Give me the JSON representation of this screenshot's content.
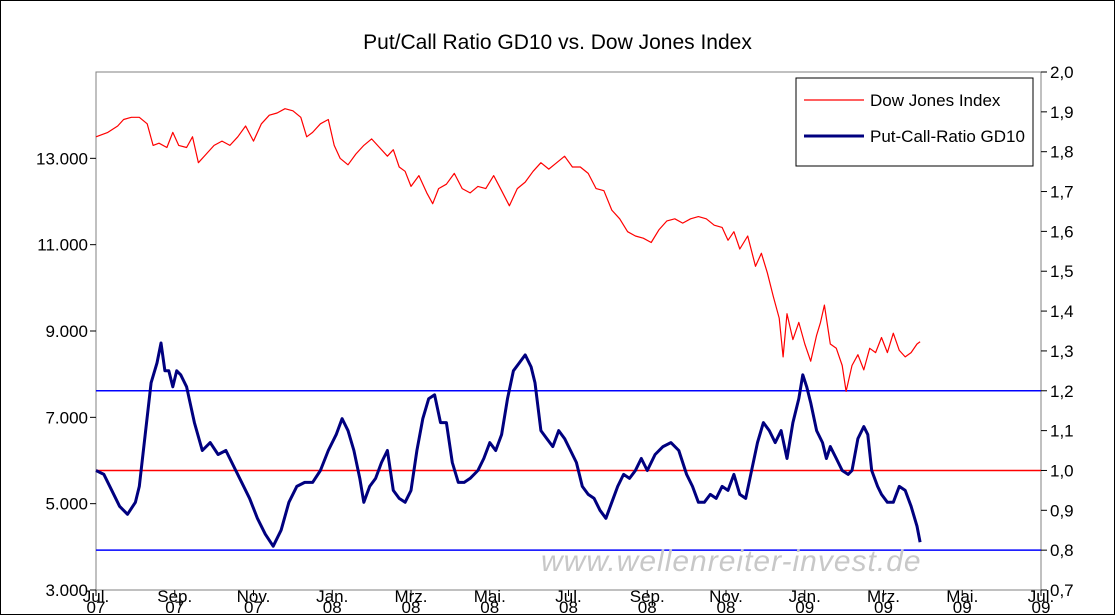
{
  "chart_data": {
    "type": "line",
    "title": "Put/Call Ratio GD10 vs. Dow Jones Index",
    "watermark": "www.wellenreiter-invest.de",
    "legend_position": "top-right",
    "grid": false,
    "x_axis": {
      "range": [
        0,
        24
      ],
      "unit": "months since Jul. 2007",
      "tick_labels": [
        [
          "Jul.",
          "07"
        ],
        [
          "Sep.",
          "07"
        ],
        [
          "Nov.",
          "07"
        ],
        [
          "Jan.",
          "08"
        ],
        [
          "Mrz.",
          "08"
        ],
        [
          "Mai.",
          "08"
        ],
        [
          "Jul.",
          "08"
        ],
        [
          "Sep.",
          "08"
        ],
        [
          "Nov.",
          "08"
        ],
        [
          "Jan.",
          "09"
        ],
        [
          "Mrz.",
          "09"
        ],
        [
          "Mai.",
          "09"
        ],
        [
          "Jul.",
          "09"
        ]
      ]
    },
    "y_left": {
      "range": [
        3000,
        15000
      ],
      "tick_labels": [
        "3.000",
        "5.000",
        "7.000",
        "9.000",
        "11.000",
        "13.000"
      ],
      "ticks": [
        3000,
        5000,
        7000,
        9000,
        11000,
        13000
      ]
    },
    "y_right": {
      "range": [
        0.7,
        2.0
      ],
      "tick_labels": [
        "0,7",
        "0,8",
        "0,9",
        "1,0",
        "1,1",
        "1,2",
        "1,3",
        "1,4",
        "1,5",
        "1,6",
        "1,7",
        "1,8",
        "1,9",
        "2,0"
      ],
      "ticks": [
        0.7,
        0.8,
        0.9,
        1.0,
        1.1,
        1.2,
        1.3,
        1.4,
        1.5,
        1.6,
        1.7,
        1.8,
        1.9,
        2.0
      ]
    },
    "reference_lines": [
      {
        "axis": "right",
        "value": 1.2,
        "color": "#0000ff"
      },
      {
        "axis": "right",
        "value": 1.0,
        "color": "#ff0000"
      },
      {
        "axis": "right",
        "value": 0.8,
        "color": "#0000ff"
      }
    ],
    "series": [
      {
        "name": "Dow Jones Index",
        "axis": "left",
        "color": "#ff0000",
        "width": 1.2,
        "points": [
          [
            0.0,
            13500
          ],
          [
            0.3,
            13600
          ],
          [
            0.55,
            13750
          ],
          [
            0.7,
            13900
          ],
          [
            0.9,
            13950
          ],
          [
            1.1,
            13950
          ],
          [
            1.3,
            13800
          ],
          [
            1.45,
            13300
          ],
          [
            1.6,
            13350
          ],
          [
            1.8,
            13250
          ],
          [
            1.95,
            13600
          ],
          [
            2.1,
            13300
          ],
          [
            2.3,
            13250
          ],
          [
            2.45,
            13500
          ],
          [
            2.6,
            12900
          ],
          [
            2.8,
            13100
          ],
          [
            3.0,
            13300
          ],
          [
            3.2,
            13400
          ],
          [
            3.4,
            13300
          ],
          [
            3.6,
            13500
          ],
          [
            3.8,
            13750
          ],
          [
            4.0,
            13400
          ],
          [
            4.2,
            13800
          ],
          [
            4.4,
            14000
          ],
          [
            4.6,
            14050
          ],
          [
            4.8,
            14150
          ],
          [
            5.0,
            14100
          ],
          [
            5.2,
            13950
          ],
          [
            5.35,
            13500
          ],
          [
            5.5,
            13600
          ],
          [
            5.7,
            13800
          ],
          [
            5.9,
            13900
          ],
          [
            6.05,
            13300
          ],
          [
            6.2,
            13000
          ],
          [
            6.4,
            12850
          ],
          [
            6.6,
            13100
          ],
          [
            6.8,
            13300
          ],
          [
            7.0,
            13450
          ],
          [
            7.2,
            13250
          ],
          [
            7.4,
            13050
          ],
          [
            7.55,
            13200
          ],
          [
            7.7,
            12800
          ],
          [
            7.85,
            12700
          ],
          [
            8.0,
            12350
          ],
          [
            8.2,
            12600
          ],
          [
            8.4,
            12200
          ],
          [
            8.55,
            11950
          ],
          [
            8.7,
            12300
          ],
          [
            8.9,
            12400
          ],
          [
            9.1,
            12650
          ],
          [
            9.3,
            12300
          ],
          [
            9.5,
            12200
          ],
          [
            9.7,
            12350
          ],
          [
            9.9,
            12300
          ],
          [
            10.1,
            12600
          ],
          [
            10.3,
            12250
          ],
          [
            10.5,
            11900
          ],
          [
            10.7,
            12300
          ],
          [
            10.9,
            12450
          ],
          [
            11.1,
            12700
          ],
          [
            11.3,
            12900
          ],
          [
            11.5,
            12750
          ],
          [
            11.7,
            12900
          ],
          [
            11.9,
            13050
          ],
          [
            12.1,
            12800
          ],
          [
            12.3,
            12800
          ],
          [
            12.5,
            12650
          ],
          [
            12.7,
            12300
          ],
          [
            12.9,
            12250
          ],
          [
            13.1,
            11800
          ],
          [
            13.3,
            11600
          ],
          [
            13.5,
            11300
          ],
          [
            13.7,
            11200
          ],
          [
            13.9,
            11150
          ],
          [
            14.1,
            11050
          ],
          [
            14.3,
            11350
          ],
          [
            14.5,
            11550
          ],
          [
            14.7,
            11600
          ],
          [
            14.9,
            11500
          ],
          [
            15.1,
            11600
          ],
          [
            15.3,
            11650
          ],
          [
            15.5,
            11600
          ],
          [
            15.7,
            11450
          ],
          [
            15.9,
            11400
          ],
          [
            16.05,
            11100
          ],
          [
            16.2,
            11300
          ],
          [
            16.35,
            10900
          ],
          [
            16.55,
            11200
          ],
          [
            16.75,
            10500
          ],
          [
            16.9,
            10800
          ],
          [
            17.05,
            10350
          ],
          [
            17.2,
            9800
          ],
          [
            17.35,
            9300
          ],
          [
            17.45,
            8400
          ],
          [
            17.55,
            9400
          ],
          [
            17.7,
            8800
          ],
          [
            17.85,
            9200
          ],
          [
            18.0,
            8700
          ],
          [
            18.15,
            8300
          ],
          [
            18.3,
            8900
          ],
          [
            18.4,
            9200
          ],
          [
            18.5,
            9600
          ],
          [
            18.65,
            8700
          ],
          [
            18.8,
            8600
          ],
          [
            18.95,
            8200
          ],
          [
            19.05,
            7600
          ],
          [
            19.2,
            8200
          ],
          [
            19.35,
            8450
          ],
          [
            19.5,
            8100
          ],
          [
            19.65,
            8600
          ],
          [
            19.8,
            8500
          ],
          [
            19.95,
            8850
          ],
          [
            20.1,
            8500
          ],
          [
            20.25,
            8950
          ],
          [
            20.4,
            8550
          ],
          [
            20.55,
            8400
          ],
          [
            20.7,
            8500
          ],
          [
            20.85,
            8700
          ],
          [
            20.93,
            8750
          ]
        ]
      },
      {
        "name": "Put-Call-Ratio GD10",
        "axis": "right",
        "color": "#00007f",
        "width": 3,
        "points": [
          [
            0.0,
            1.0
          ],
          [
            0.2,
            0.99
          ],
          [
            0.4,
            0.95
          ],
          [
            0.6,
            0.91
          ],
          [
            0.8,
            0.89
          ],
          [
            1.0,
            0.92
          ],
          [
            1.1,
            0.96
          ],
          [
            1.25,
            1.09
          ],
          [
            1.4,
            1.22
          ],
          [
            1.55,
            1.27
          ],
          [
            1.65,
            1.32
          ],
          [
            1.75,
            1.25
          ],
          [
            1.85,
            1.25
          ],
          [
            1.95,
            1.21
          ],
          [
            2.05,
            1.25
          ],
          [
            2.15,
            1.24
          ],
          [
            2.3,
            1.21
          ],
          [
            2.5,
            1.12
          ],
          [
            2.7,
            1.05
          ],
          [
            2.9,
            1.07
          ],
          [
            3.1,
            1.04
          ],
          [
            3.3,
            1.05
          ],
          [
            3.5,
            1.01
          ],
          [
            3.7,
            0.97
          ],
          [
            3.9,
            0.93
          ],
          [
            4.1,
            0.88
          ],
          [
            4.3,
            0.84
          ],
          [
            4.5,
            0.81
          ],
          [
            4.7,
            0.85
          ],
          [
            4.9,
            0.92
          ],
          [
            5.1,
            0.96
          ],
          [
            5.3,
            0.97
          ],
          [
            5.5,
            0.97
          ],
          [
            5.7,
            1.0
          ],
          [
            5.9,
            1.05
          ],
          [
            6.1,
            1.09
          ],
          [
            6.25,
            1.13
          ],
          [
            6.4,
            1.1
          ],
          [
            6.55,
            1.05
          ],
          [
            6.7,
            0.98
          ],
          [
            6.8,
            0.92
          ],
          [
            6.95,
            0.96
          ],
          [
            7.1,
            0.98
          ],
          [
            7.25,
            1.02
          ],
          [
            7.4,
            1.05
          ],
          [
            7.55,
            0.95
          ],
          [
            7.7,
            0.93
          ],
          [
            7.85,
            0.92
          ],
          [
            8.0,
            0.95
          ],
          [
            8.15,
            1.05
          ],
          [
            8.3,
            1.13
          ],
          [
            8.45,
            1.18
          ],
          [
            8.6,
            1.19
          ],
          [
            8.75,
            1.12
          ],
          [
            8.9,
            1.12
          ],
          [
            9.05,
            1.02
          ],
          [
            9.2,
            0.97
          ],
          [
            9.35,
            0.97
          ],
          [
            9.5,
            0.98
          ],
          [
            9.7,
            1.0
          ],
          [
            9.85,
            1.03
          ],
          [
            10.0,
            1.07
          ],
          [
            10.15,
            1.05
          ],
          [
            10.3,
            1.09
          ],
          [
            10.45,
            1.18
          ],
          [
            10.6,
            1.25
          ],
          [
            10.75,
            1.27
          ],
          [
            10.9,
            1.29
          ],
          [
            11.05,
            1.26
          ],
          [
            11.15,
            1.22
          ],
          [
            11.3,
            1.1
          ],
          [
            11.45,
            1.08
          ],
          [
            11.6,
            1.06
          ],
          [
            11.75,
            1.1
          ],
          [
            11.9,
            1.08
          ],
          [
            12.05,
            1.05
          ],
          [
            12.2,
            1.02
          ],
          [
            12.35,
            0.96
          ],
          [
            12.5,
            0.94
          ],
          [
            12.65,
            0.93
          ],
          [
            12.8,
            0.9
          ],
          [
            12.95,
            0.88
          ],
          [
            13.1,
            0.92
          ],
          [
            13.25,
            0.96
          ],
          [
            13.4,
            0.99
          ],
          [
            13.55,
            0.98
          ],
          [
            13.7,
            1.0
          ],
          [
            13.85,
            1.03
          ],
          [
            14.0,
            1.0
          ],
          [
            14.2,
            1.04
          ],
          [
            14.4,
            1.06
          ],
          [
            14.6,
            1.07
          ],
          [
            14.8,
            1.05
          ],
          [
            15.0,
            0.99
          ],
          [
            15.15,
            0.96
          ],
          [
            15.3,
            0.92
          ],
          [
            15.45,
            0.92
          ],
          [
            15.6,
            0.94
          ],
          [
            15.75,
            0.93
          ],
          [
            15.9,
            0.96
          ],
          [
            16.05,
            0.95
          ],
          [
            16.2,
            0.99
          ],
          [
            16.35,
            0.94
          ],
          [
            16.5,
            0.93
          ],
          [
            16.65,
            1.0
          ],
          [
            16.8,
            1.07
          ],
          [
            16.95,
            1.12
          ],
          [
            17.1,
            1.1
          ],
          [
            17.25,
            1.07
          ],
          [
            17.4,
            1.1
          ],
          [
            17.55,
            1.03
          ],
          [
            17.7,
            1.12
          ],
          [
            17.85,
            1.18
          ],
          [
            17.95,
            1.24
          ],
          [
            18.05,
            1.21
          ],
          [
            18.15,
            1.17
          ],
          [
            18.3,
            1.1
          ],
          [
            18.45,
            1.07
          ],
          [
            18.55,
            1.03
          ],
          [
            18.65,
            1.06
          ],
          [
            18.8,
            1.03
          ],
          [
            18.95,
            1.0
          ],
          [
            19.1,
            0.99
          ],
          [
            19.2,
            1.0
          ],
          [
            19.35,
            1.08
          ],
          [
            19.5,
            1.11
          ],
          [
            19.6,
            1.09
          ],
          [
            19.7,
            1.0
          ],
          [
            19.85,
            0.96
          ],
          [
            19.95,
            0.94
          ],
          [
            20.1,
            0.92
          ],
          [
            20.25,
            0.92
          ],
          [
            20.4,
            0.96
          ],
          [
            20.55,
            0.95
          ],
          [
            20.7,
            0.91
          ],
          [
            20.85,
            0.86
          ],
          [
            20.93,
            0.82
          ]
        ]
      }
    ]
  }
}
